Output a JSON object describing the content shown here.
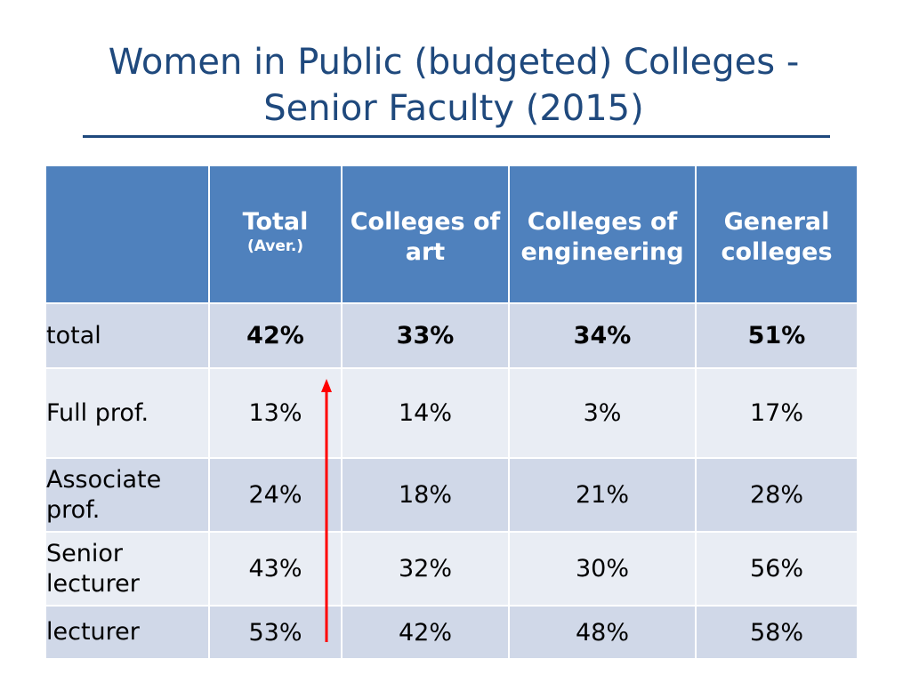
{
  "title": {
    "line1": "Women in Public (budgeted) Colleges -",
    "line2": "Senior Faculty (2015)"
  },
  "table": {
    "header": {
      "total": "Total",
      "total_sub": "(Aver.)",
      "art": "Colleges of art",
      "engineering": "Colleges of engineering",
      "general": "General colleges"
    },
    "rows": [
      {
        "label": "total",
        "total": "42%",
        "art": "33%",
        "engineering": "34%",
        "general": "51%"
      },
      {
        "label": "Full prof.",
        "total": "13%",
        "art": "14%",
        "engineering": "3%",
        "general": "17%"
      },
      {
        "label": "Associate prof.",
        "total": "24%",
        "art": "18%",
        "engineering": "21%",
        "general": "28%"
      },
      {
        "label": "Senior lecturer",
        "total": "43%",
        "art": "32%",
        "engineering": "30%",
        "general": "56%"
      },
      {
        "label": "lecturer",
        "total": "53%",
        "art": "42%",
        "engineering": "48%",
        "general": "58%"
      }
    ]
  },
  "colors": {
    "title": "#1f497d",
    "header_bg": "#4f81bd",
    "row_dark": "#d0d8e8",
    "row_light": "#e9edf4",
    "arrow": "#ff0000"
  }
}
